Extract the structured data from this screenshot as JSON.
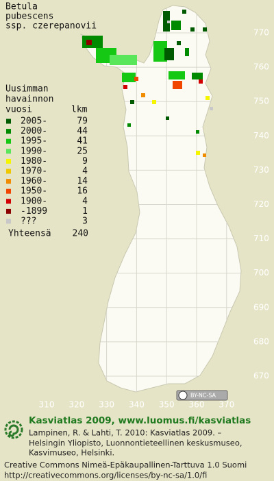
{
  "title": [
    "Betula",
    "pubescens",
    "ssp. czerepanovii"
  ],
  "legend": {
    "heading": [
      "Uusimman",
      "havainnon",
      "vuosi"
    ],
    "count_header": "lkm",
    "items": [
      {
        "label": "2005-",
        "count": 79,
        "color": "#005a00"
      },
      {
        "label": "2000-",
        "count": 44,
        "color": "#008a00"
      },
      {
        "label": "1995-",
        "count": 41,
        "color": "#14c814"
      },
      {
        "label": "1990-",
        "count": 25,
        "color": "#5ae65a"
      },
      {
        "label": "1980-",
        "count": 9,
        "color": "#f5f500"
      },
      {
        "label": "1970-",
        "count": 4,
        "color": "#f0c800"
      },
      {
        "label": "1960-",
        "count": 14,
        "color": "#f08c00"
      },
      {
        "label": "1950-",
        "count": 16,
        "color": "#f04600"
      },
      {
        "label": "1900-",
        "count": 4,
        "color": "#d20000"
      },
      {
        "label": "-1899",
        "count": 1,
        "color": "#8c0000"
      },
      {
        "label": "???",
        "count": 3,
        "color": "#c8c8c8"
      }
    ],
    "total_label": "Yhteensä",
    "total": 240
  },
  "grid": {
    "y_labels": [
      770,
      760,
      750,
      740,
      730,
      720,
      710,
      700,
      690,
      680,
      670
    ],
    "x_labels": [
      310,
      320,
      330,
      340,
      350,
      360,
      370
    ]
  },
  "cc_badge": "BY-NC-SA",
  "footer": {
    "brand": "Kasviatlas 2009, www.luomus.fi/kasviatlas",
    "citation": [
      "Lampinen, R. & Lahti, T. 2010: Kasviatlas 2009. –",
      "Helsingin Yliopisto, Luonnontieteellinen keskusmuseo,",
      "Kasvimuseo, Helsinki."
    ],
    "license": [
      "Creative Commons Nimeä-Epäkaupallinen-Tarttuva 1.0 Suomi",
      "http://creativecommons.org/licenses/by-nc-sa/1.0/fi"
    ]
  }
}
